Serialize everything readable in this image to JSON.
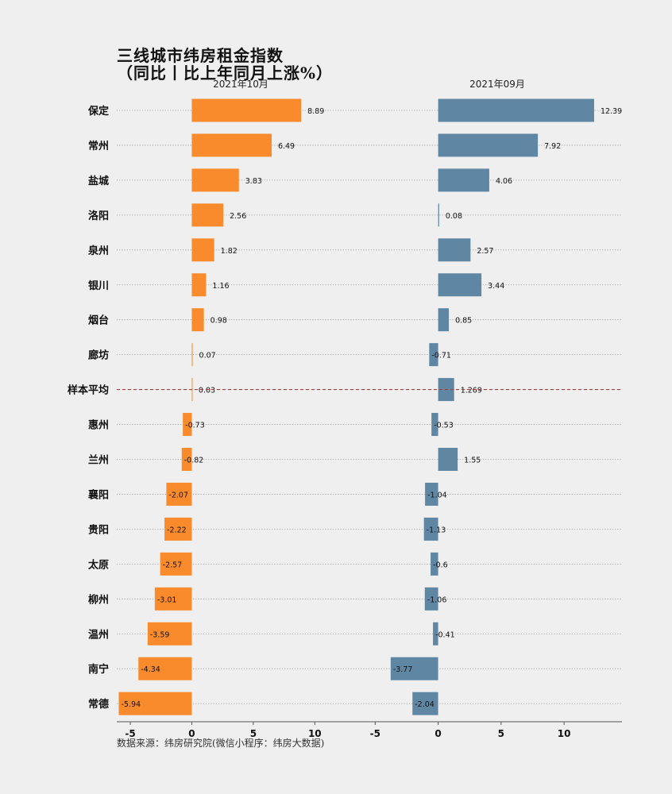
{
  "title": "三线城市纬房租金指数",
  "subtitle": "（同比丨比上年同月上涨%）",
  "source": "数据来源：纬房研究院(微信小程序：纬房大数据)",
  "colors": {
    "left": "#f98b2c",
    "right": "#5f87a3",
    "average_line": "#b03a3a",
    "axis": "#555555",
    "grid": "#9a9a9a"
  },
  "chart_data": {
    "type": "bar",
    "orientation": "horizontal",
    "categories": [
      "保定",
      "常州",
      "盐城",
      "洛阳",
      "泉州",
      "银川",
      "烟台",
      "廊坊",
      "样本平均",
      "惠州",
      "兰州",
      "襄阳",
      "贵阳",
      "太原",
      "柳州",
      "温州",
      "南宁",
      "常德"
    ],
    "highlight_category": "样本平均",
    "series": [
      {
        "name": "2021年10月",
        "values": [
          8.89,
          6.49,
          3.83,
          2.56,
          1.82,
          1.16,
          0.98,
          0.07,
          0.03,
          -0.73,
          -0.82,
          -2.07,
          -2.22,
          -2.57,
          -3.01,
          -3.59,
          -4.34,
          -5.94
        ],
        "labels": [
          "8.89",
          "6.49",
          "3.83",
          "2.56",
          "1.82",
          "1.16",
          "0.98",
          "0.07",
          "0.03",
          "-0.73",
          "-0.82",
          "-2.07",
          "-2.22",
          "-2.57",
          "-3.01",
          "-3.59",
          "-4.34",
          "-5.94"
        ],
        "xlim": [
          -6.1,
          14.5
        ],
        "ticks": [
          -5,
          0,
          5,
          10
        ],
        "tick_labels": [
          "-5",
          "0",
          "5",
          "10"
        ]
      },
      {
        "name": "2021年09月",
        "values": [
          12.39,
          7.92,
          4.06,
          0.08,
          2.57,
          3.44,
          0.85,
          -0.71,
          1.269,
          -0.53,
          1.55,
          -1.04,
          -1.13,
          -0.6,
          -1.06,
          -0.41,
          -3.77,
          -2.04
        ],
        "labels": [
          "12.39",
          "7.92",
          "4.06",
          "0.08",
          "2.57",
          "3.44",
          "0.85",
          "-0.71",
          "1.269",
          "-0.53",
          "1.55",
          "-1.04",
          "-1.13",
          "-0.6",
          "-1.06",
          "-0.41",
          "-3.77",
          "-2.04"
        ],
        "xlim": [
          -5.4,
          14.6
        ],
        "ticks": [
          -5,
          0,
          5,
          10
        ],
        "tick_labels": [
          "-5",
          "0",
          "5",
          "10"
        ]
      }
    ]
  }
}
